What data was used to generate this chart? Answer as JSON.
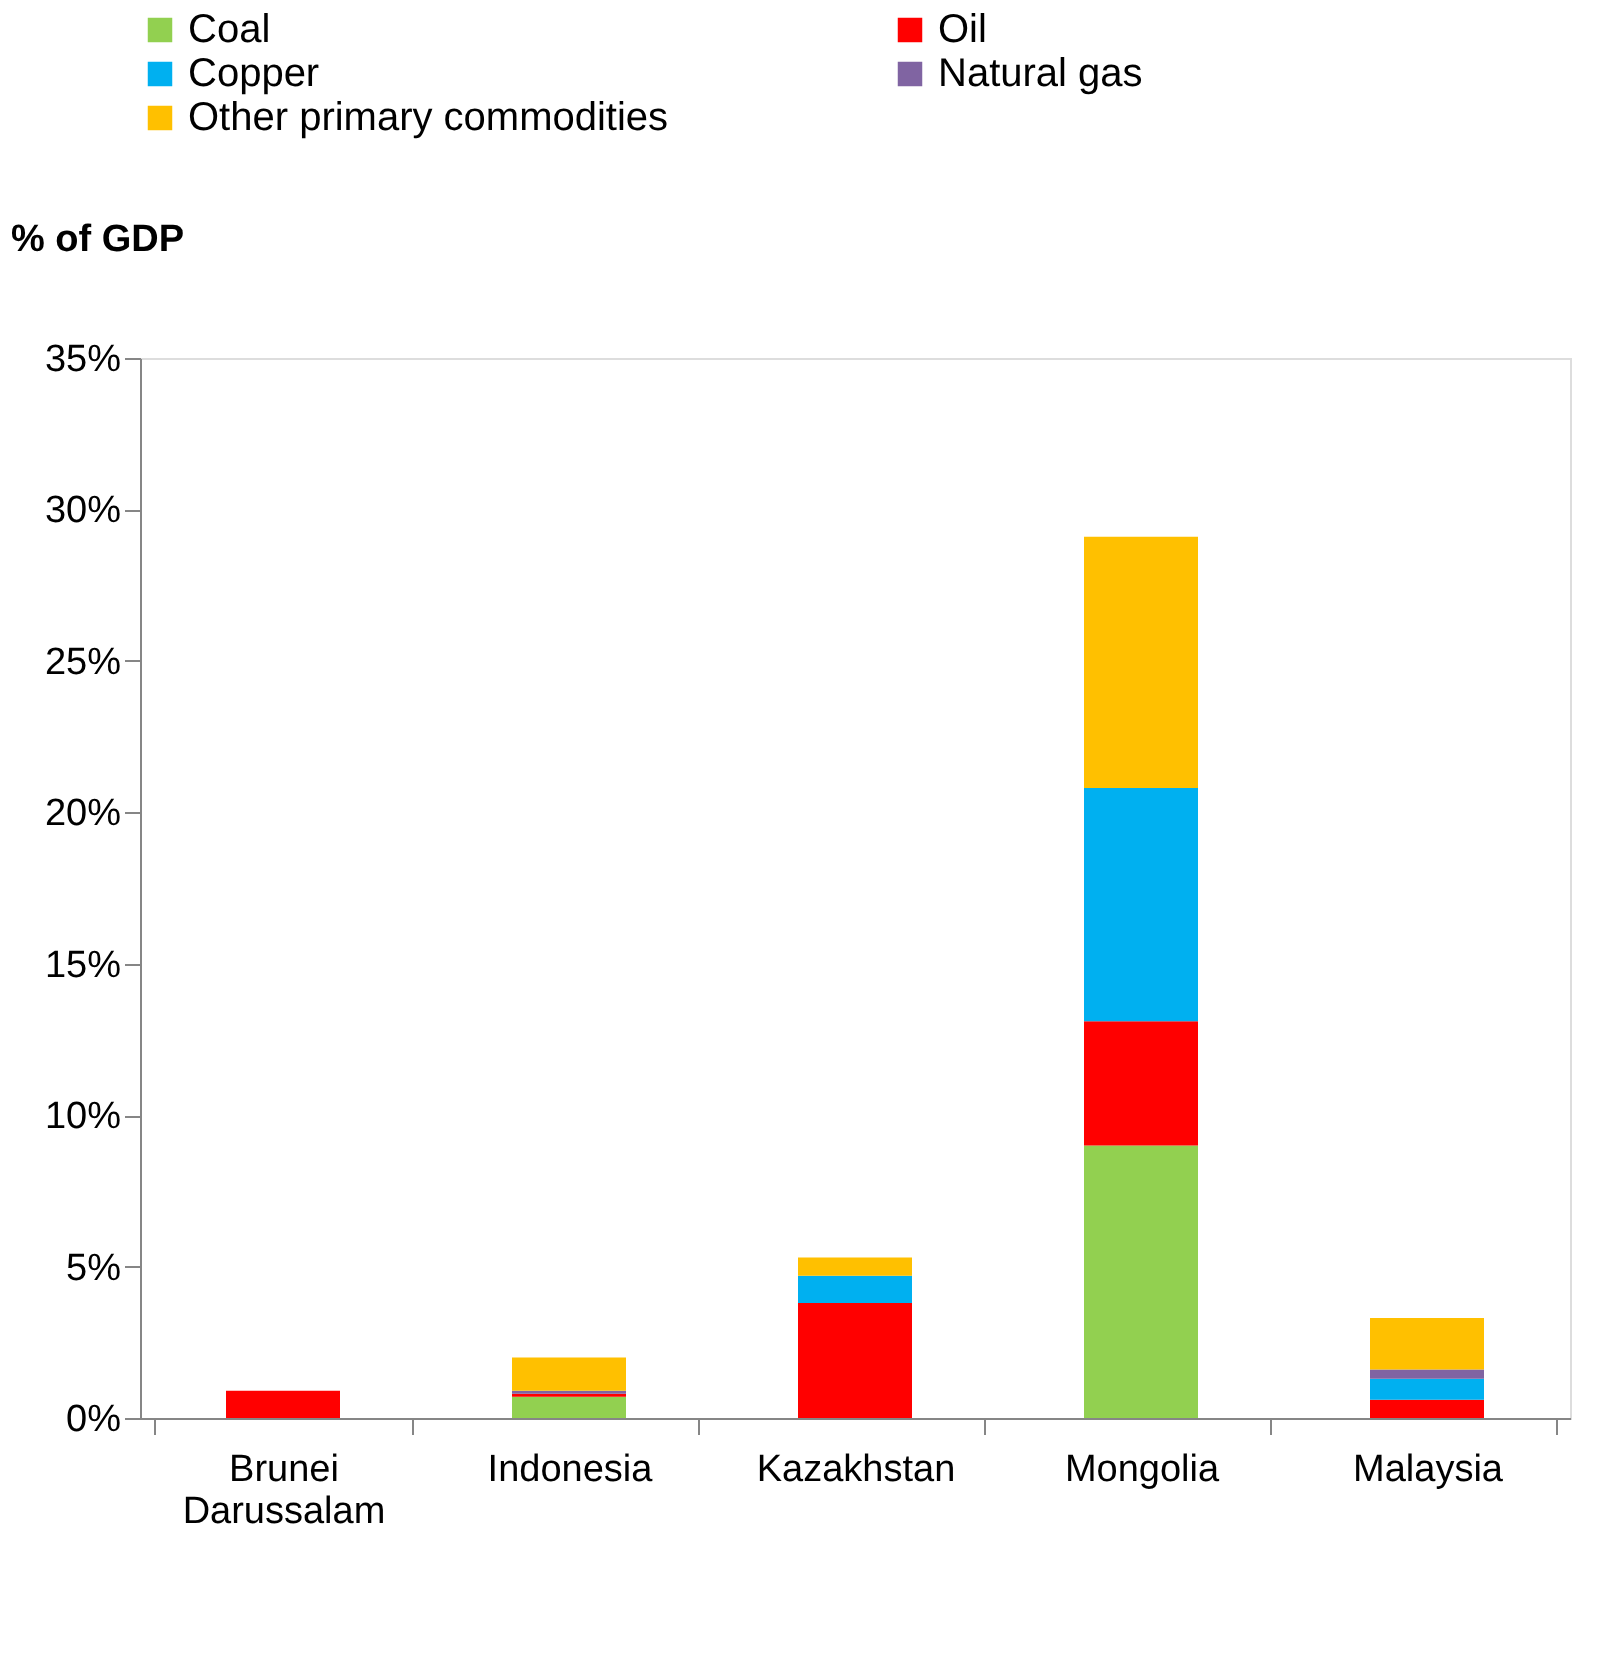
{
  "chart_data": {
    "type": "bar",
    "stacked": true,
    "ylabel": "% of GDP",
    "categories": [
      "Brunei Darussalam",
      "Indonesia",
      "Kazakhstan",
      "Mongolia",
      "Malaysia"
    ],
    "series": [
      {
        "name": "Coal",
        "color": "#92d050",
        "values": [
          0,
          0.7,
          0,
          9.0,
          0
        ]
      },
      {
        "name": "Oil",
        "color": "#ff0000",
        "values": [
          0.9,
          0.1,
          3.8,
          4.1,
          0.6
        ]
      },
      {
        "name": "Copper",
        "color": "#00b0f0",
        "values": [
          0,
          0,
          0.9,
          7.7,
          0.7
        ]
      },
      {
        "name": "Natural gas",
        "color": "#8064a2",
        "values": [
          0,
          0.1,
          0,
          0,
          0.3
        ]
      },
      {
        "name": "Other primary commodities",
        "color": "#ffc000",
        "values": [
          0,
          1.1,
          0.6,
          8.3,
          1.7
        ]
      }
    ],
    "ylim": [
      0,
      35
    ],
    "yticks": [
      {
        "value": 0,
        "label": "0%"
      },
      {
        "value": 5,
        "label": "5%"
      },
      {
        "value": 10,
        "label": "10%"
      },
      {
        "value": 15,
        "label": "15%"
      },
      {
        "value": 20,
        "label": "20%"
      },
      {
        "value": 25,
        "label": "25%"
      },
      {
        "value": 30,
        "label": "30%"
      },
      {
        "value": 35,
        "label": "35%"
      }
    ],
    "grid": false,
    "legend": "top"
  }
}
